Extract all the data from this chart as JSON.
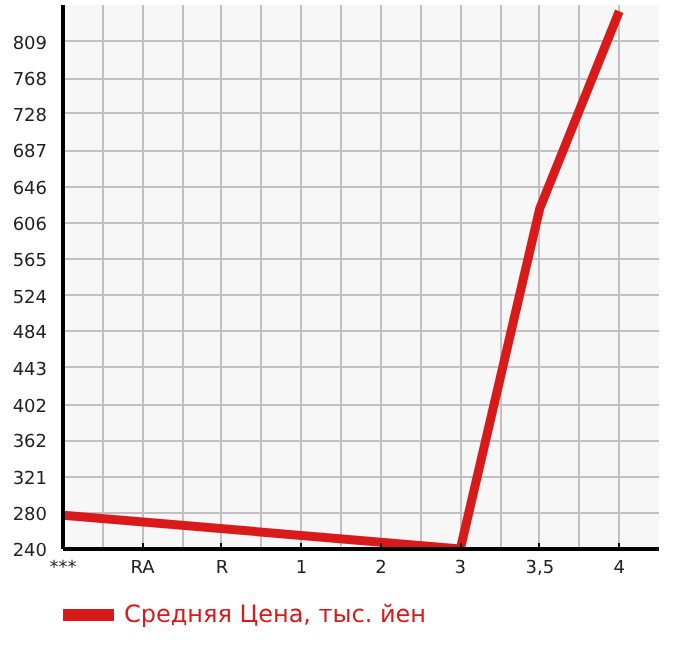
{
  "chart_data": {
    "type": "line",
    "categories": [
      "***",
      "RA",
      "R",
      "1",
      "2",
      "3",
      "3,5",
      "4"
    ],
    "series": [
      {
        "name": "Средняя Цена, тыс. йен",
        "color": "#d91a1a",
        "values": [
          278,
          null,
          null,
          null,
          null,
          240,
          622,
          843
        ]
      }
    ],
    "ylim": [
      240,
      850
    ],
    "yticks": [
      240,
      280,
      321,
      362,
      402,
      443,
      484,
      524,
      565,
      606,
      646,
      687,
      728,
      768,
      809
    ],
    "grid": true,
    "legend": "bottom",
    "line_style": "solid",
    "marker": "none"
  }
}
